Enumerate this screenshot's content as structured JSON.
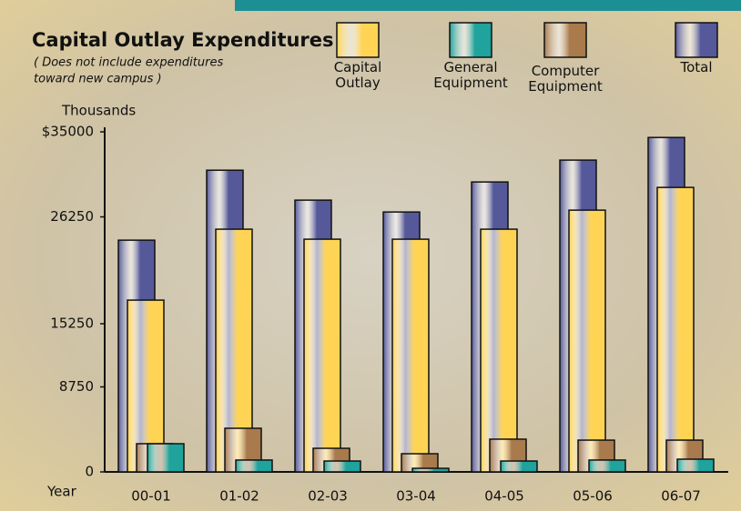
{
  "chart_data": {
    "type": "bar",
    "title": "Capital Outlay Expenditures",
    "subtitle": [
      "( Does not include expenditures",
      "toward new campus )"
    ],
    "y_label": "Thousands",
    "x_label": "Year",
    "categories": [
      "00-01",
      "01-02",
      "02-03",
      "03-04",
      "04-05",
      "05-06",
      "06-07"
    ],
    "series": [
      {
        "name": "Capital Outlay",
        "color": "#ffd455",
        "values": [
          17680,
          24980,
          23950,
          23950,
          24980,
          26940,
          29280
        ]
      },
      {
        "name": "General Equipment",
        "color": "#1fa39c",
        "values": [
          2900,
          1220,
          1120,
          370,
          1120,
          1220,
          1310
        ]
      },
      {
        "name": "Computer Equipment",
        "color": "#a87a4c",
        "values": [
          2900,
          4490,
          2430,
          1870,
          3370,
          3270,
          3270
        ]
      },
      {
        "name": "Total",
        "color": "#55599a",
        "values": [
          23850,
          31050,
          27970,
          26750,
          29840,
          32090,
          34420
        ]
      }
    ],
    "ylim": [
      0,
      35000
    ],
    "yticks": [
      0,
      8750,
      15250,
      26250,
      {
        "value": 35000,
        "label": "$35000"
      }
    ]
  }
}
